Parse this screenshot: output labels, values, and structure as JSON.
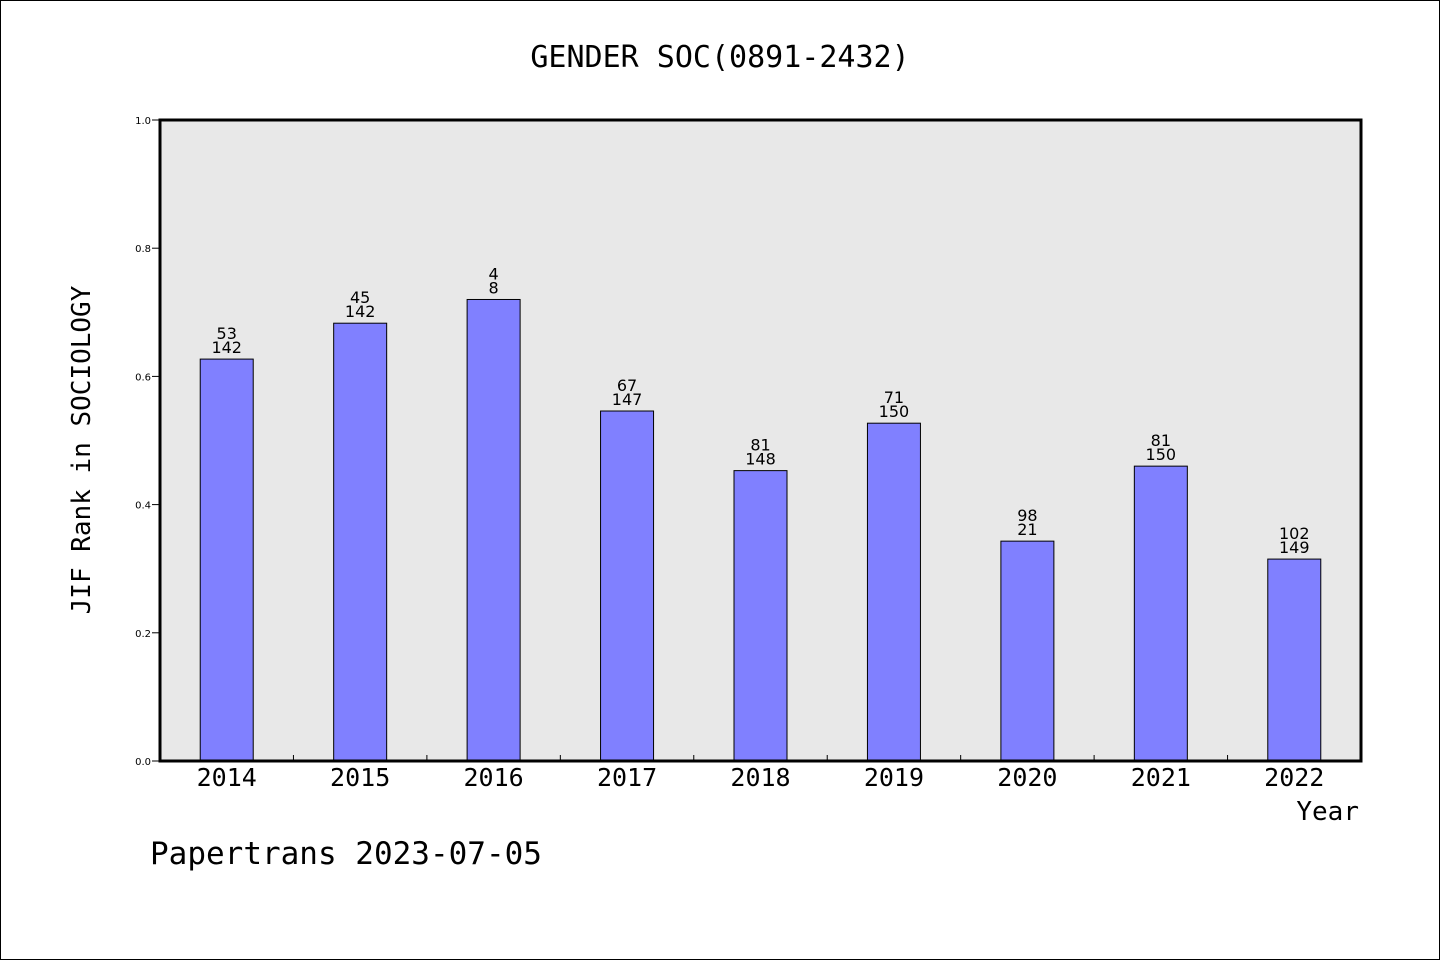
{
  "chart_data": {
    "type": "bar",
    "title": "GENDER SOC(0891-2432)",
    "xlabel": "Year",
    "ylabel": "JIF Rank in SOCIOLOGY",
    "ylim": [
      0,
      1.0
    ],
    "yticks": [
      "0.0",
      "0.2",
      "0.4",
      "0.6",
      "0.8",
      "1.0"
    ],
    "categories": [
      "2014",
      "2015",
      "2016",
      "2017",
      "2018",
      "2019",
      "2020",
      "2021",
      "2022"
    ],
    "values": [
      0.627,
      0.683,
      0.72,
      0.546,
      0.453,
      0.527,
      0.343,
      0.46,
      0.315
    ],
    "labels_top": [
      "53",
      "45",
      "4",
      "67",
      "81",
      "71",
      "98",
      "81",
      "102"
    ],
    "labels_bottom": [
      "142",
      "142",
      "8",
      "147",
      "148",
      "150",
      "21",
      "150",
      "149"
    ],
    "grid": false,
    "bar_color": "#8080ff",
    "plot_background": "#e8e8e8"
  },
  "footer": "Papertrans 2023-07-05"
}
